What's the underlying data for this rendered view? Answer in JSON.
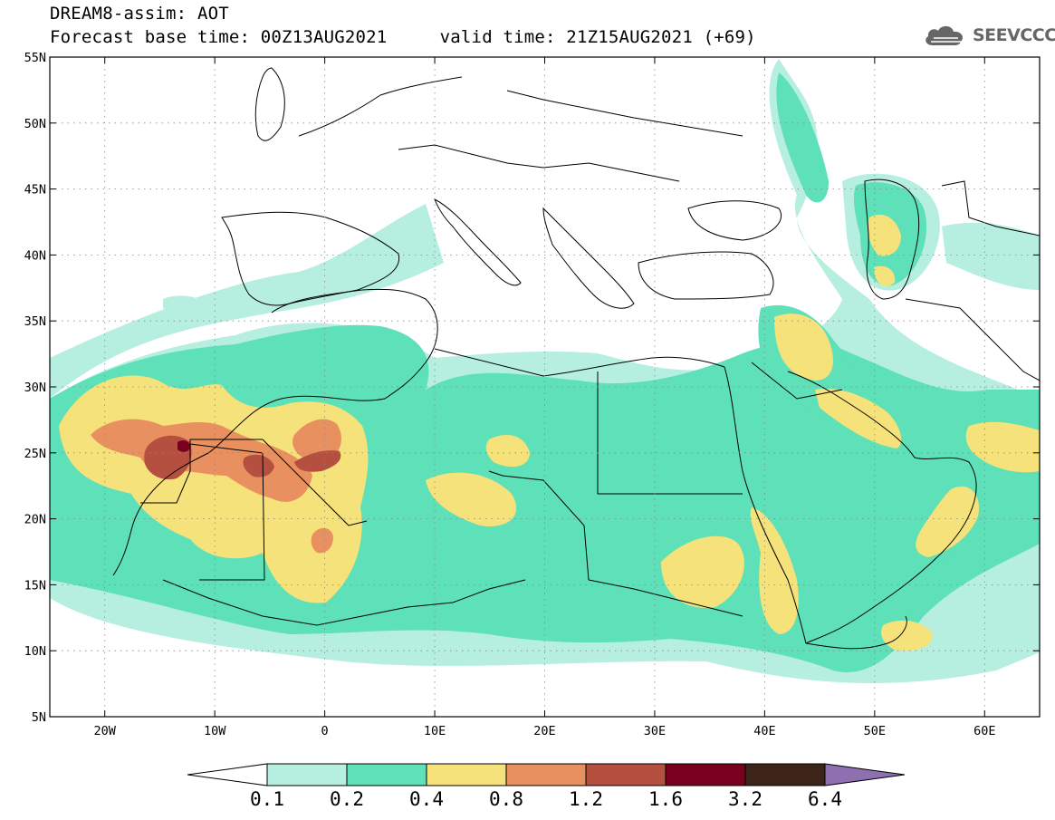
{
  "header": {
    "title_line1": "DREAM8-assim: AOT",
    "title_line2": "Forecast base time: 00Z13AUG2021     valid time: 21Z15AUG2021 (+69)",
    "logo_text": "SEEVCCC"
  },
  "map": {
    "lon_range": [
      -25,
      65
    ],
    "lat_range": [
      5,
      55
    ],
    "x_ticks": [
      {
        "lon": -20,
        "label": "20W"
      },
      {
        "lon": -10,
        "label": "10W"
      },
      {
        "lon": 0,
        "label": "0"
      },
      {
        "lon": 10,
        "label": "10E"
      },
      {
        "lon": 20,
        "label": "20E"
      },
      {
        "lon": 30,
        "label": "30E"
      },
      {
        "lon": 40,
        "label": "40E"
      },
      {
        "lon": 50,
        "label": "50E"
      },
      {
        "lon": 60,
        "label": "60E"
      }
    ],
    "y_ticks": [
      {
        "lat": 55,
        "label": "55N"
      },
      {
        "lat": 50,
        "label": "50N"
      },
      {
        "lat": 45,
        "label": "45N"
      },
      {
        "lat": 40,
        "label": "40N"
      },
      {
        "lat": 35,
        "label": "35N"
      },
      {
        "lat": 30,
        "label": "30N"
      },
      {
        "lat": 25,
        "label": "25N"
      },
      {
        "lat": 20,
        "label": "20N"
      },
      {
        "lat": 15,
        "label": "15N"
      },
      {
        "lat": 10,
        "label": "10N"
      },
      {
        "lat": 5,
        "label": "5N"
      }
    ],
    "gridlines": "dotted"
  },
  "colorbar": {
    "colors": [
      "#ffffff",
      "#b6eee0",
      "#5ee0b8",
      "#f5e27a",
      "#e89060",
      "#b55040",
      "#7a0020",
      "#3d2418",
      "#8e70b0"
    ],
    "labels": [
      "0.1",
      "0.2",
      "0.4",
      "0.8",
      "1.2",
      "1.6",
      "3.2",
      "6.4"
    ]
  },
  "legend_colors": {
    "very_light": "#b6eee0",
    "light": "#5ee0b8",
    "medium": "#f5e27a",
    "orange": "#e89060",
    "brown": "#b55040",
    "dark": "#7a0020"
  }
}
